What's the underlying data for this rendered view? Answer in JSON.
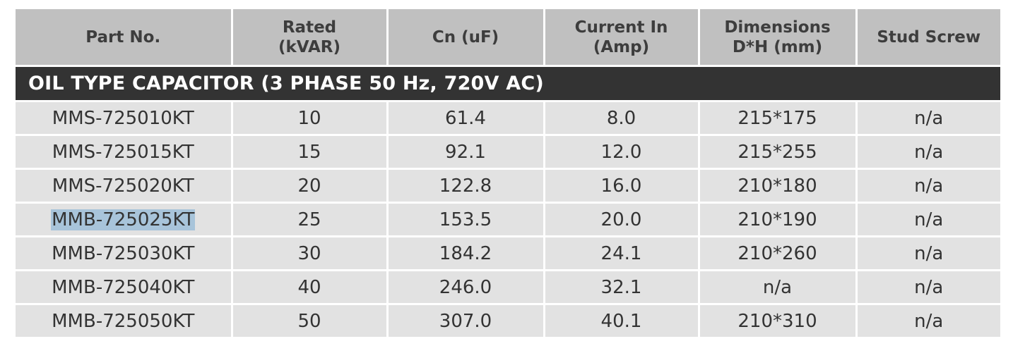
{
  "table": {
    "columns": [
      {
        "lines": [
          "Part No."
        ]
      },
      {
        "lines": [
          "Rated",
          "(kVAR)"
        ]
      },
      {
        "lines": [
          "Cn (uF)"
        ]
      },
      {
        "lines": [
          "Current In",
          "(Amp)"
        ]
      },
      {
        "lines": [
          "Dimensions",
          "D*H (mm)"
        ]
      },
      {
        "lines": [
          "Stud Screw"
        ]
      }
    ],
    "section_title": "OIL TYPE CAPACITOR (3 PHASE 50 Hz, 720V AC)",
    "rows": [
      [
        "MMS-725010KT",
        "10",
        "61.4",
        "8.0",
        "215*175",
        "n/a"
      ],
      [
        "MMS-725015KT",
        "15",
        "92.1",
        "12.0",
        "215*255",
        "n/a"
      ],
      [
        "MMS-725020KT",
        "20",
        "122.8",
        "16.0",
        "210*180",
        "n/a"
      ],
      [
        "MMB-725025KT",
        "25",
        "153.5",
        "20.0",
        "210*190",
        "n/a"
      ],
      [
        "MMB-725030KT",
        "30",
        "184.2",
        "24.1",
        "210*260",
        "n/a"
      ],
      [
        "MMB-725040KT",
        "40",
        "246.0",
        "32.1",
        "n/a",
        "n/a"
      ],
      [
        "MMB-725050KT",
        "50",
        "307.0",
        "40.1",
        "210*310",
        "n/a"
      ]
    ],
    "selected_row": 3,
    "colors": {
      "header_bg": "#c0c0c0",
      "section_bg": "#333333",
      "row_bg": "#e2e2e2",
      "selection": "#a8c4da"
    }
  }
}
